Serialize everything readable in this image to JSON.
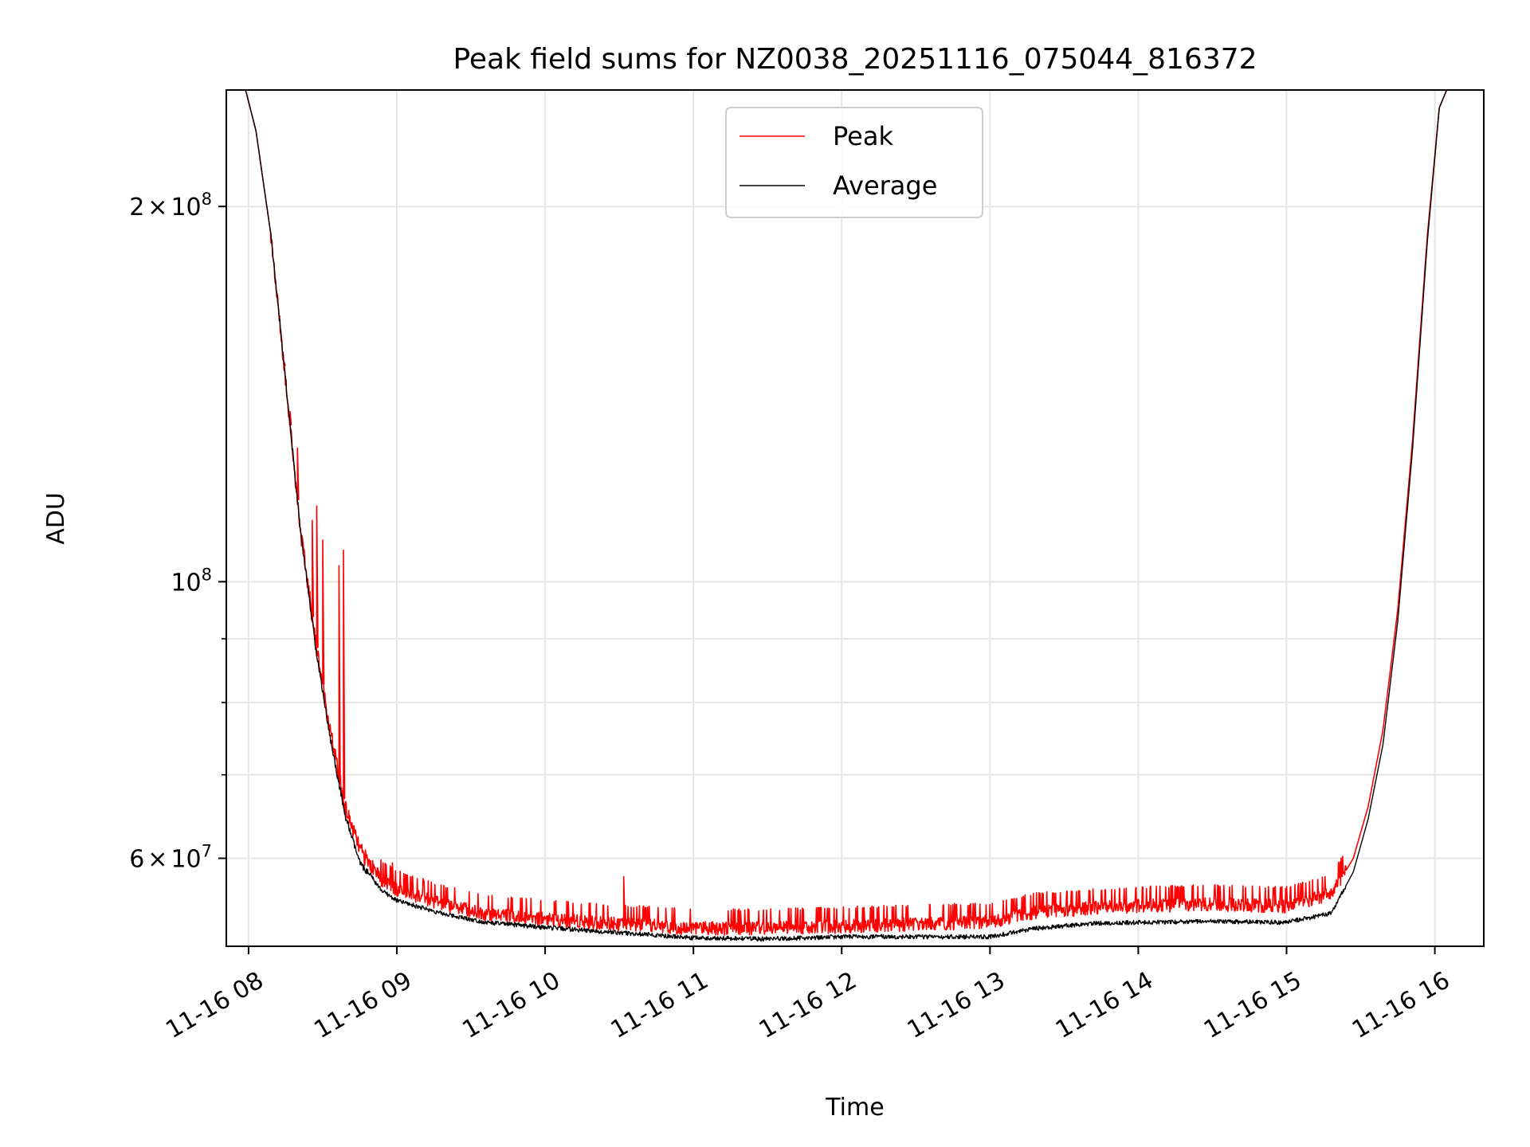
{
  "chart_data": {
    "type": "line",
    "title": "Peak field sums for NZ0038_20251116_075044_816372",
    "xlabel": "Time",
    "ylabel": "ADU",
    "xlim": [
      7.85,
      16.33
    ],
    "ylim_log": [
      51000000,
      248000000
    ],
    "x_ticks": [
      {
        "value": 8,
        "label": "11-16 08"
      },
      {
        "value": 9,
        "label": "11-16 09"
      },
      {
        "value": 10,
        "label": "11-16 10"
      },
      {
        "value": 11,
        "label": "11-16 11"
      },
      {
        "value": 12,
        "label": "11-16 12"
      },
      {
        "value": 13,
        "label": "11-16 13"
      },
      {
        "value": 14,
        "label": "11-16 14"
      },
      {
        "value": 15,
        "label": "11-16 15"
      },
      {
        "value": 16,
        "label": "11-16 16"
      }
    ],
    "y_major_ticks": [
      {
        "value": 60000000,
        "mantissa": "6",
        "times": "×",
        "base": "10",
        "exp": "7"
      },
      {
        "value": 100000000,
        "mantissa": "",
        "times": "",
        "base": "10",
        "exp": "8"
      },
      {
        "value": 200000000,
        "mantissa": "2",
        "times": "×",
        "base": "10",
        "exp": "8"
      }
    ],
    "y_minor_ticks": [
      70000000,
      80000000,
      90000000
    ],
    "grid": true,
    "legend_position": "top-center",
    "series": [
      {
        "name": "Peak",
        "color": "#ff0000",
        "points": [
          [
            7.85,
            248000000
          ],
          [
            7.98,
            248000000
          ],
          [
            8.05,
            230000000
          ],
          [
            8.15,
            190000000
          ],
          [
            8.25,
            145000000
          ],
          [
            8.35,
            110000000
          ],
          [
            8.45,
            90000000
          ],
          [
            8.55,
            76000000
          ],
          [
            8.65,
            66000000
          ],
          [
            8.75,
            61000000
          ],
          [
            8.9,
            57500000
          ],
          [
            9.0,
            56500000
          ],
          [
            9.3,
            55000000
          ],
          [
            9.6,
            54000000
          ],
          [
            10.0,
            53500000
          ],
          [
            10.5,
            53000000
          ],
          [
            11.0,
            52600000
          ],
          [
            11.5,
            52600000
          ],
          [
            12.0,
            52800000
          ],
          [
            12.5,
            53000000
          ],
          [
            13.0,
            53200000
          ],
          [
            13.3,
            54200000
          ],
          [
            13.7,
            54600000
          ],
          [
            14.0,
            54800000
          ],
          [
            14.5,
            55000000
          ],
          [
            15.0,
            54800000
          ],
          [
            15.3,
            56000000
          ],
          [
            15.45,
            60000000
          ],
          [
            15.55,
            66000000
          ],
          [
            15.65,
            76000000
          ],
          [
            15.75,
            95000000
          ],
          [
            15.85,
            130000000
          ],
          [
            15.95,
            190000000
          ],
          [
            16.03,
            240000000
          ],
          [
            16.08,
            248000000
          ],
          [
            16.33,
            248000000
          ]
        ],
        "spikes": [
          [
            8.24,
            150000000
          ],
          [
            8.28,
            137000000
          ],
          [
            8.33,
            128000000
          ],
          [
            8.43,
            112000000
          ],
          [
            8.46,
            115000000
          ],
          [
            8.5,
            108000000
          ],
          [
            8.61,
            103000000
          ],
          [
            8.64,
            106000000
          ],
          [
            8.97,
            59500000
          ],
          [
            10.53,
            58000000
          ],
          [
            11.3,
            54500000
          ],
          [
            12.15,
            54800000
          ]
        ]
      },
      {
        "name": "Average",
        "color": "#000000",
        "points": [
          [
            7.85,
            248000000
          ],
          [
            7.98,
            248000000
          ],
          [
            8.05,
            230000000
          ],
          [
            8.15,
            190000000
          ],
          [
            8.25,
            145000000
          ],
          [
            8.35,
            110000000
          ],
          [
            8.45,
            89000000
          ],
          [
            8.55,
            75000000
          ],
          [
            8.65,
            65000000
          ],
          [
            8.75,
            59500000
          ],
          [
            8.9,
            56500000
          ],
          [
            9.0,
            55500000
          ],
          [
            9.3,
            54200000
          ],
          [
            9.6,
            53300000
          ],
          [
            10.0,
            52800000
          ],
          [
            10.5,
            52300000
          ],
          [
            11.0,
            51800000
          ],
          [
            11.5,
            51700000
          ],
          [
            12.0,
            51900000
          ],
          [
            12.5,
            51900000
          ],
          [
            13.0,
            51900000
          ],
          [
            13.3,
            52700000
          ],
          [
            13.7,
            53200000
          ],
          [
            14.0,
            53300000
          ],
          [
            14.5,
            53400000
          ],
          [
            15.0,
            53300000
          ],
          [
            15.3,
            54200000
          ],
          [
            15.45,
            58500000
          ],
          [
            15.55,
            64500000
          ],
          [
            15.65,
            74000000
          ],
          [
            15.75,
            93000000
          ],
          [
            15.85,
            128000000
          ],
          [
            15.95,
            188000000
          ],
          [
            16.03,
            240000000
          ],
          [
            16.08,
            248000000
          ],
          [
            16.33,
            248000000
          ]
        ]
      }
    ]
  }
}
